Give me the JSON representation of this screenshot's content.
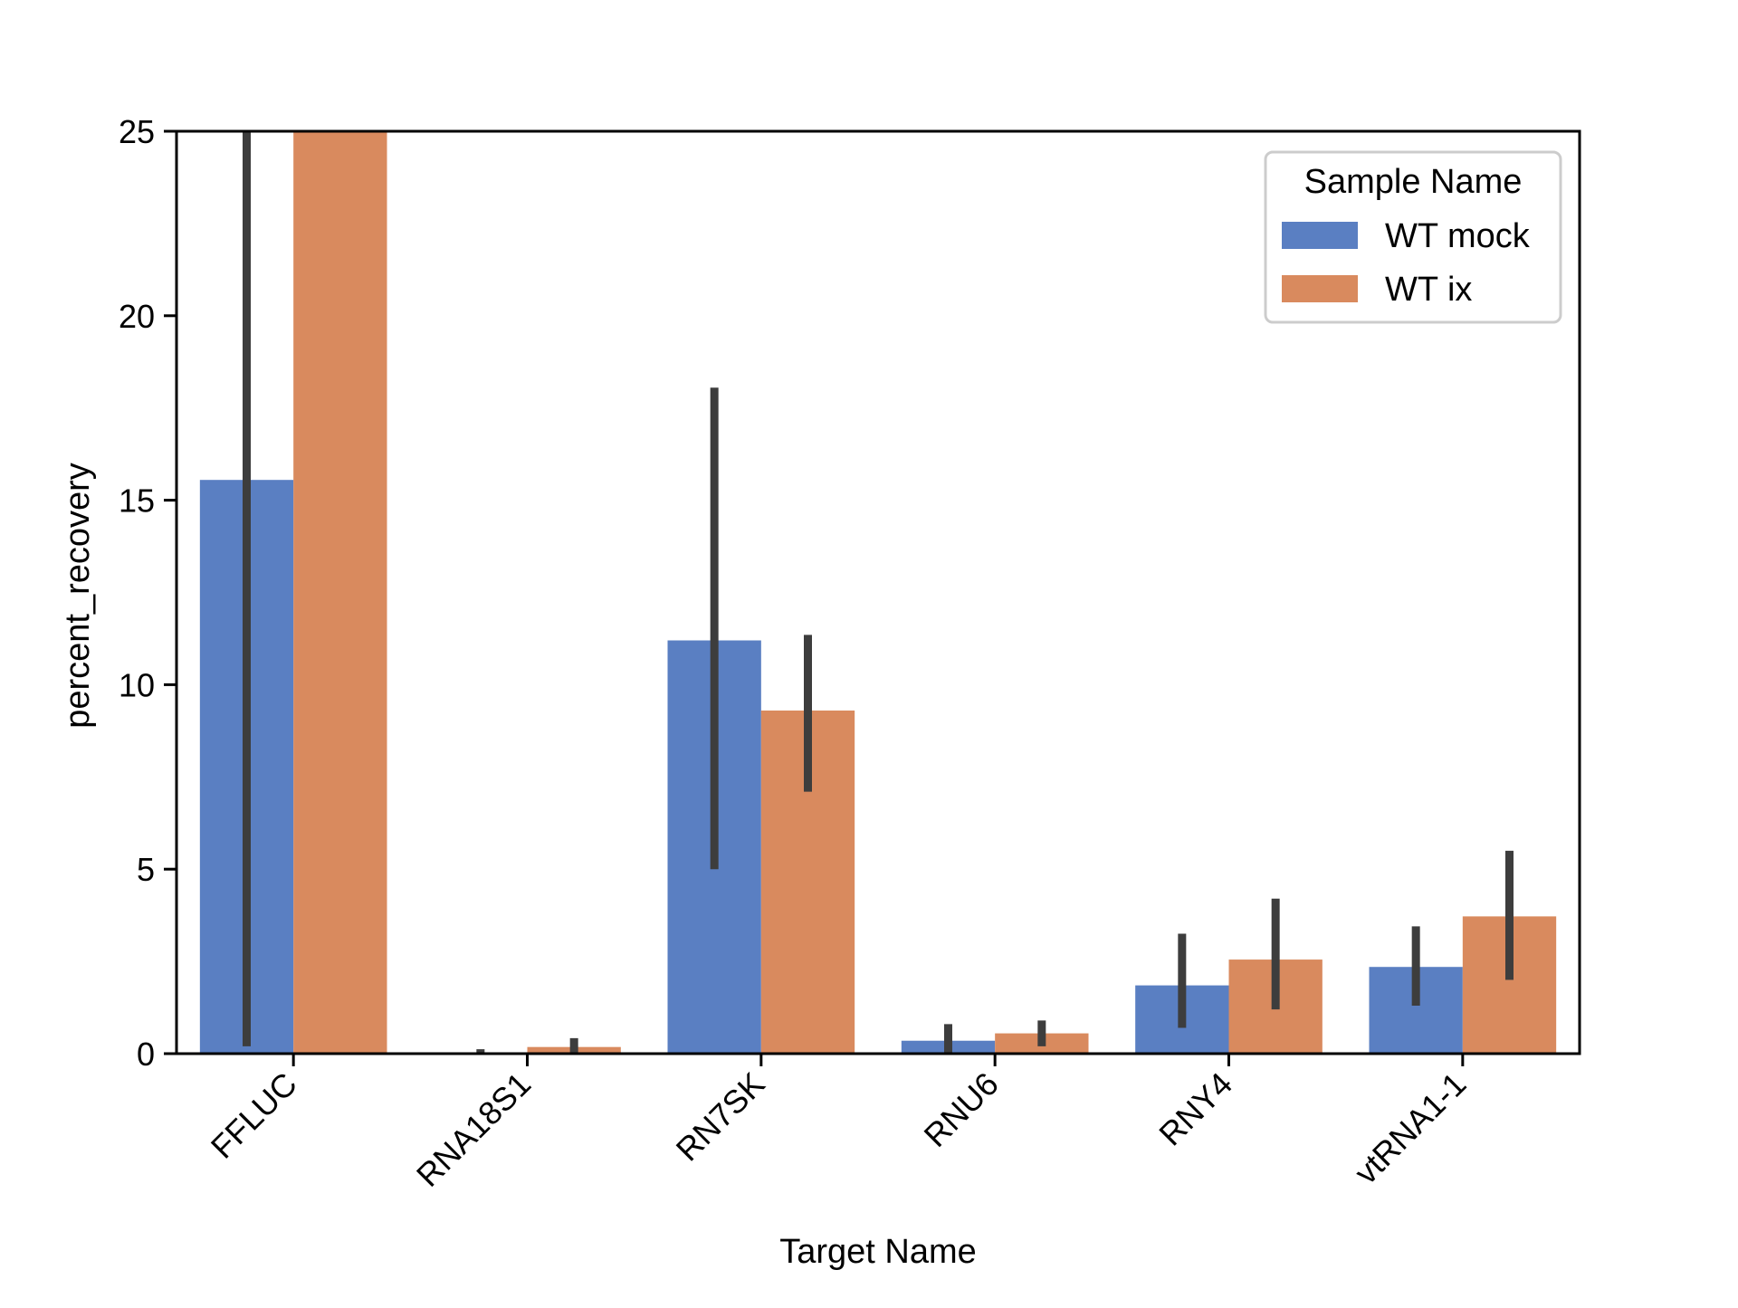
{
  "chart_data": {
    "type": "bar",
    "title": "",
    "xlabel": "Target Name",
    "ylabel": "percent_recovery",
    "ylim": [
      0,
      25
    ],
    "yticks": [
      0,
      5,
      10,
      15,
      20,
      25
    ],
    "categories": [
      "FFLUC",
      "RNA18S1",
      "RN7SK",
      "RNU6",
      "RNY4",
      "vtRNA1-1"
    ],
    "legend": {
      "title": "Sample Name",
      "position": "top-right"
    },
    "grid": false,
    "series": [
      {
        "name": "WT mock",
        "color": "#5a7fc2",
        "values": [
          15.55,
          0.0,
          11.2,
          0.35,
          1.85,
          2.35
        ],
        "err_low": [
          0.2,
          0.0,
          5.0,
          0.0,
          0.7,
          1.3
        ],
        "err_high": [
          25.0,
          0.12,
          18.05,
          0.8,
          3.25,
          3.45
        ]
      },
      {
        "name": "WT ix",
        "color": "#d98a5e",
        "values": [
          25.0,
          0.18,
          9.3,
          0.55,
          2.55,
          3.72
        ],
        "err_low": [
          null,
          0.0,
          7.1,
          0.2,
          1.2,
          2.0
        ],
        "err_high": [
          null,
          0.42,
          11.35,
          0.9,
          4.2,
          5.5
        ]
      }
    ]
  }
}
